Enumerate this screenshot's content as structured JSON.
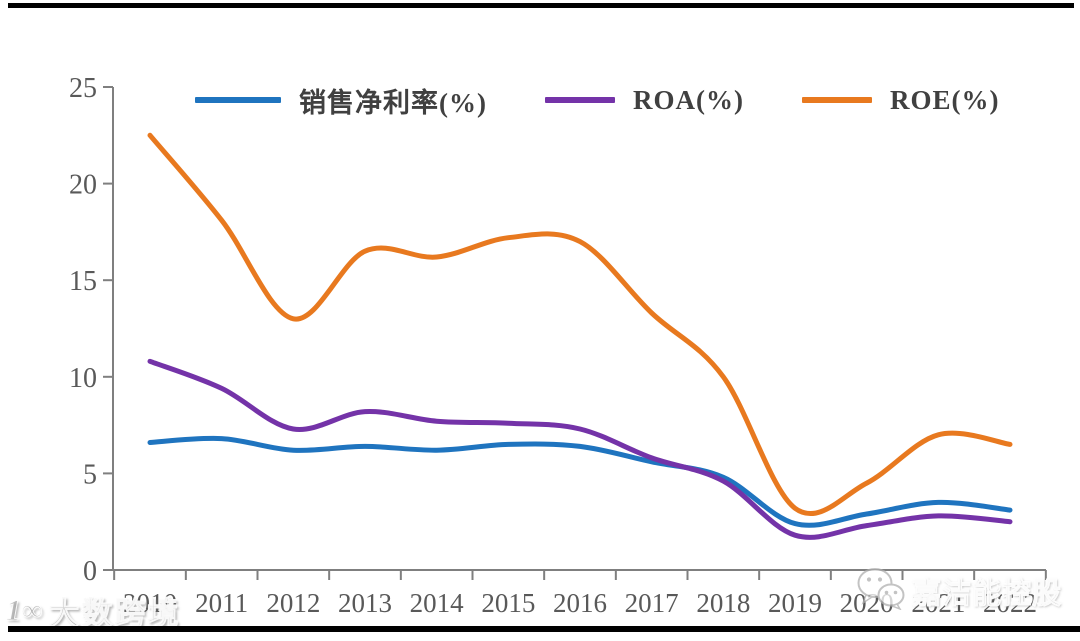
{
  "page": {
    "background": "#ffffff",
    "top_bar_color": "#000000",
    "bottom_bar_color": "#000000"
  },
  "chart_data": {
    "type": "line",
    "x": [
      2010,
      2011,
      2012,
      2013,
      2014,
      2015,
      2016,
      2017,
      2018,
      2019,
      2020,
      2021,
      2022
    ],
    "series": [
      {
        "name": "销售净利率(%)",
        "color": "#1F74BF",
        "values": [
          6.6,
          6.8,
          6.2,
          6.4,
          6.2,
          6.5,
          6.4,
          5.6,
          4.8,
          2.4,
          2.9,
          3.5,
          3.1
        ]
      },
      {
        "name": "ROA(%)",
        "color": "#7433A8",
        "values": [
          10.8,
          9.4,
          7.3,
          8.2,
          7.7,
          7.6,
          7.3,
          5.8,
          4.6,
          1.8,
          2.3,
          2.8,
          2.5
        ]
      },
      {
        "name": "ROE(%)",
        "color": "#E8791F",
        "values": [
          22.5,
          18.1,
          13.0,
          16.5,
          16.2,
          17.2,
          17.0,
          13.3,
          10.0,
          3.2,
          4.5,
          7.0,
          6.5
        ]
      }
    ],
    "title": "",
    "xlabel": "",
    "ylabel": "",
    "ylim": [
      0,
      25
    ],
    "yticks": [
      0,
      5,
      10,
      15,
      20,
      25
    ],
    "grid": false,
    "legend_position": "top",
    "line_smoothing": true,
    "axis_color": "#7F7F7F",
    "tick_label_color": "#595959",
    "legend_text_color": "#404040"
  },
  "watermarks": {
    "bottom_left": {
      "logo_text": "1∞",
      "text": "大数跨境"
    },
    "bottom_right": {
      "icon": "wechat-icon",
      "text": "嘉洁能控股"
    }
  }
}
